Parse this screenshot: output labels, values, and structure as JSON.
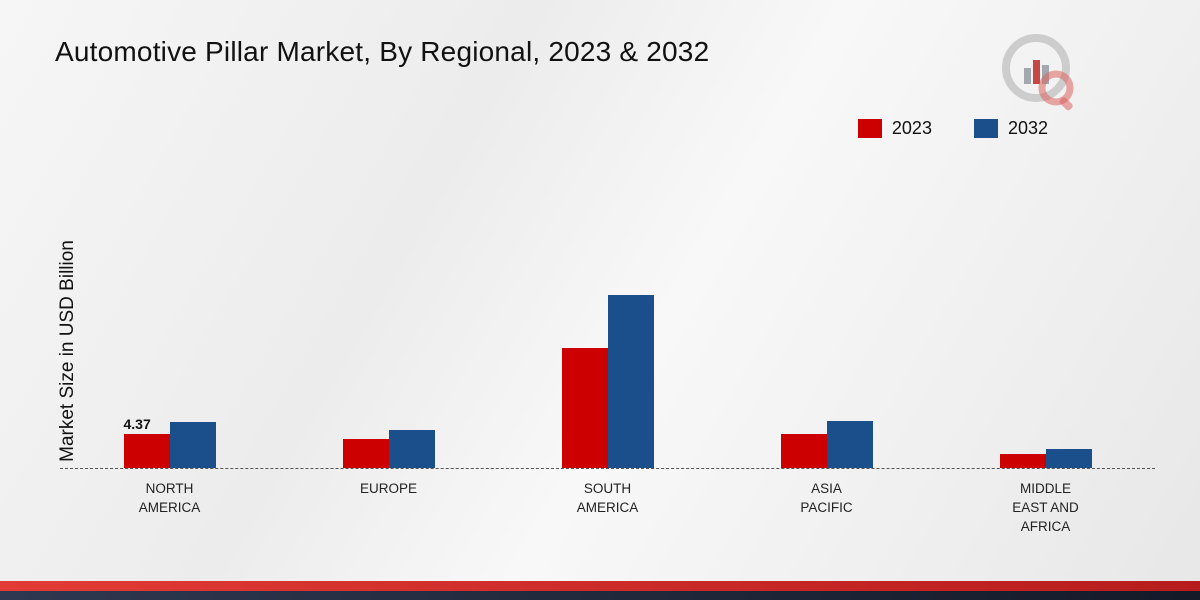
{
  "chart_data": {
    "type": "bar",
    "title": "Automotive Pillar Market, By Regional, 2023 & 2032",
    "ylabel": "Market Size in USD Billion",
    "categories": [
      "NORTH AMERICA",
      "EUROPE",
      "SOUTH AMERICA",
      "ASIA PACIFIC",
      "MIDDLE EAST AND AFRICA"
    ],
    "series": [
      {
        "name": "2023",
        "color": "#cc0000",
        "values": [
          4.37,
          3.7,
          15.4,
          4.4,
          1.8
        ]
      },
      {
        "name": "2032",
        "color": "#1a4f8b",
        "values": [
          5.9,
          4.9,
          22.2,
          6.0,
          2.4
        ]
      }
    ],
    "data_labels": [
      {
        "series": "2023",
        "category": "NORTH AMERICA",
        "text": "4.37"
      }
    ],
    "ylim": [
      0,
      25
    ],
    "legend_position": "top-right",
    "grid": false,
    "baseline_style": "dashed"
  },
  "colors": {
    "accent_red": "#cc0000",
    "accent_blue": "#1a4f8b",
    "footer_red": "#b71c1c",
    "footer_dark": "#1c2435"
  },
  "brand": {
    "logo_name": "market-research-logo"
  }
}
